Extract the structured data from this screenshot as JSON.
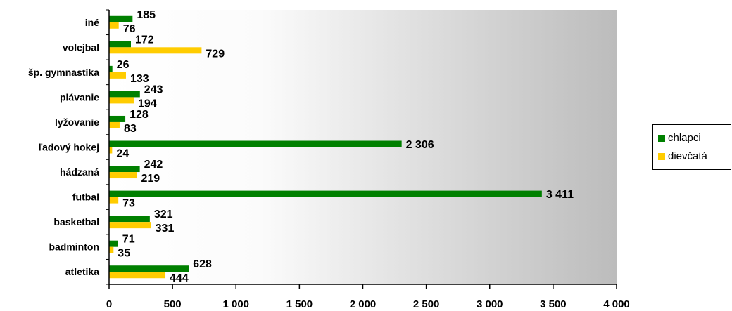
{
  "chart_data": {
    "type": "bar",
    "orientation": "horizontal",
    "categories": [
      "atletika",
      "badminton",
      "basketbal",
      "futbal",
      "hádzaná",
      "ľadový hokej",
      "lyžovanie",
      "plávanie",
      "šp. gymnastika",
      "volejbal",
      "iné"
    ],
    "series": [
      {
        "name": "chlapci",
        "color": "#008000",
        "values": [
          628,
          71,
          321,
          3411,
          242,
          2306,
          128,
          243,
          26,
          172,
          185
        ],
        "labels": [
          "628",
          "71",
          "321",
          "3 411",
          "242",
          "2 306",
          "128",
          "243",
          "26",
          "172",
          "185"
        ]
      },
      {
        "name": "dievčatá",
        "color": "#FFCC00",
        "values": [
          444,
          35,
          331,
          73,
          219,
          24,
          83,
          194,
          133,
          729,
          76
        ],
        "labels": [
          "444",
          "35",
          "331",
          "73",
          "219",
          "24",
          "83",
          "194",
          "133",
          "729",
          "76"
        ]
      }
    ],
    "xlim": [
      0,
      4000
    ],
    "xticks": [
      0,
      500,
      1000,
      1500,
      2000,
      2500,
      3000,
      3500,
      4000
    ],
    "xtick_labels": [
      "0",
      "500",
      "1 000",
      "1 500",
      "2 000",
      "2 500",
      "3 000",
      "3 500",
      "4 000"
    ],
    "legend": {
      "position": "right",
      "entries": [
        "chlapci",
        "dievčatá"
      ]
    },
    "plot_background": "gradient white to gray",
    "grid": false
  }
}
